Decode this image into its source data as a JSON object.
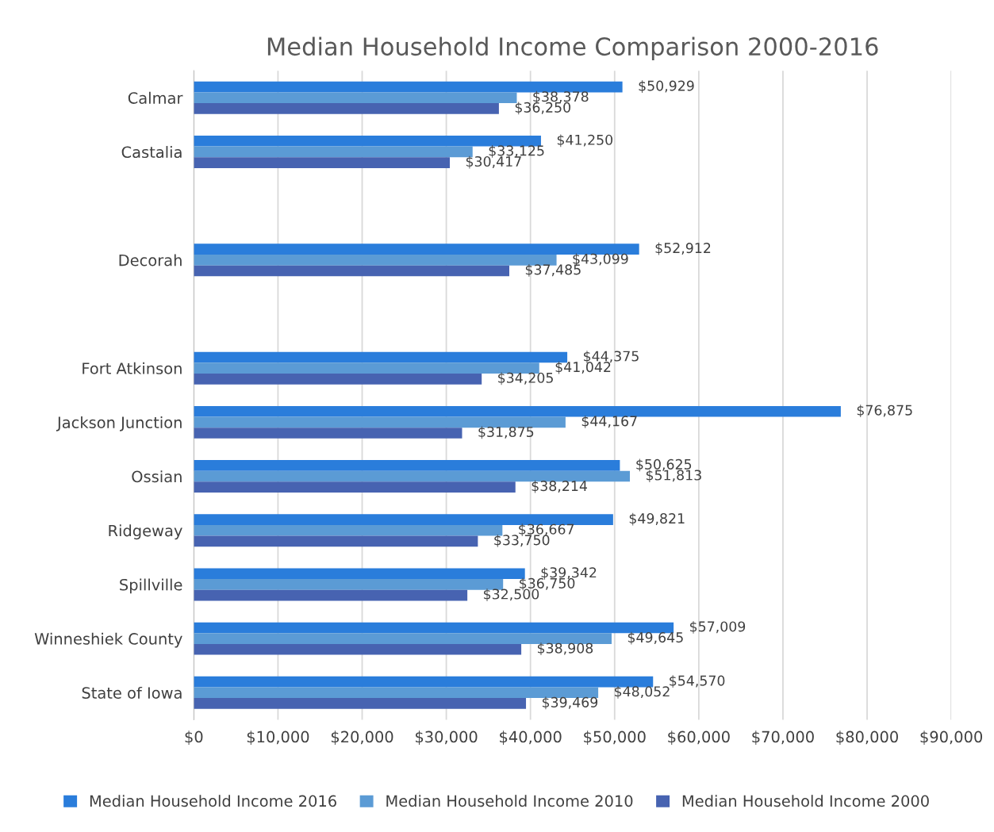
{
  "chart_data": {
    "type": "bar",
    "orientation": "horizontal",
    "title": "Median Household Income Comparison 2000-2016",
    "categories": [
      "Calmar",
      "Castalia",
      null,
      "Decorah",
      null,
      "Fort Atkinson",
      "Jackson Junction",
      "Ossian",
      "Ridgeway",
      "Spillville",
      "Winneshiek County",
      "State of Iowa"
    ],
    "series": [
      {
        "name": "Median Household Income 2016",
        "color": "#2a7ddb",
        "values": [
          50929,
          41250,
          null,
          52912,
          null,
          44375,
          76875,
          50625,
          49821,
          39342,
          57009,
          54570
        ],
        "value_labels": [
          "$50,929",
          "$41,250",
          null,
          "$52,912",
          null,
          "$44,375",
          "$76,875",
          "$50,625",
          "$49,821",
          "$39,342",
          "$57,009",
          "$54,570"
        ]
      },
      {
        "name": "Median Household Income 2010",
        "color": "#5b9bd5",
        "values": [
          38378,
          33125,
          null,
          43099,
          null,
          41042,
          44167,
          51813,
          36667,
          36750,
          49645,
          48052
        ],
        "value_labels": [
          "$38,378",
          "$33,125",
          null,
          "$43,099",
          null,
          "$41,042",
          "$44,167",
          "$51,813",
          "$36,667",
          "$36,750",
          "$49,645",
          "$48,052"
        ]
      },
      {
        "name": "Median Household Income 2000",
        "color": "#4763b1",
        "values": [
          36250,
          30417,
          null,
          37485,
          null,
          34205,
          31875,
          38214,
          33750,
          32500,
          38908,
          39469
        ],
        "value_labels": [
          "$36,250",
          "$30,417",
          null,
          "$37,485",
          null,
          "$34,205",
          "$31,875",
          "$38,214",
          "$33,750",
          "$32,500",
          "$38,908",
          "$39,469"
        ]
      }
    ],
    "xlim": [
      0,
      90000
    ],
    "xticks": [
      {
        "value": 0,
        "label": "$0"
      },
      {
        "value": 10000,
        "label": "$10,000"
      },
      {
        "value": 20000,
        "label": "$20,000"
      },
      {
        "value": 30000,
        "label": "$30,000"
      },
      {
        "value": 40000,
        "label": "$40,000"
      },
      {
        "value": 50000,
        "label": "$50,000"
      },
      {
        "value": 60000,
        "label": "$60,000"
      },
      {
        "value": 70000,
        "label": "$70,000"
      },
      {
        "value": 80000,
        "label": "$80,000"
      },
      {
        "value": 90000,
        "label": "$90,000"
      }
    ],
    "grid": "x",
    "legend": "bottom"
  }
}
